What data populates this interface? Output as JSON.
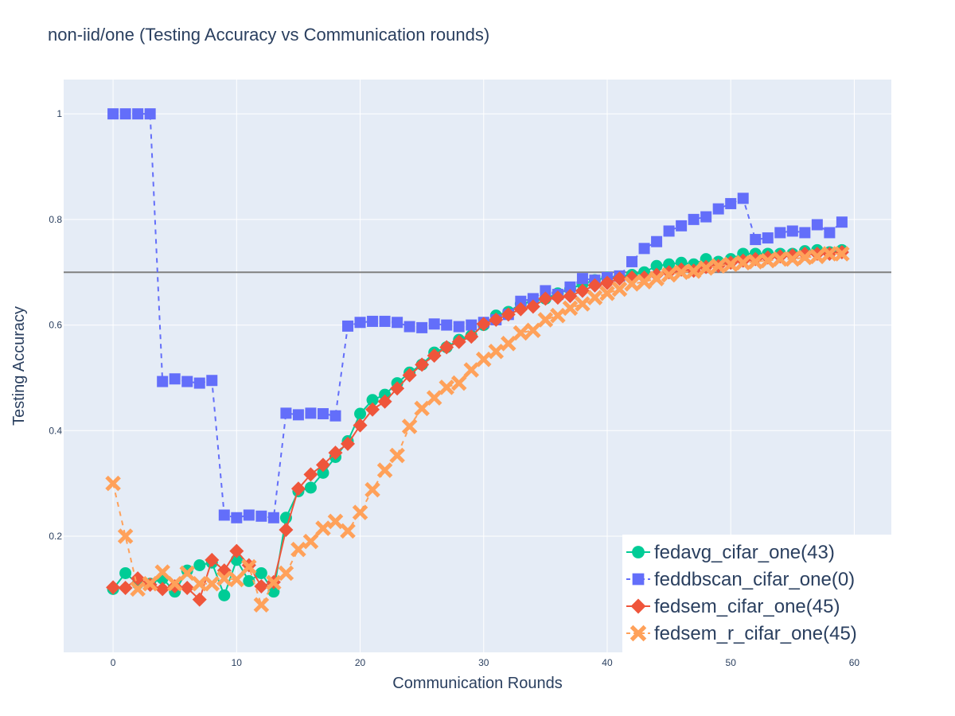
{
  "chart_data": {
    "type": "line",
    "title": "non-iid/one (Testing Accuracy vs Communication rounds)",
    "xlabel": "Communication Rounds",
    "ylabel": "Testing Accuracy",
    "xlim": [
      -4,
      63
    ],
    "ylim": [
      -0.02,
      1.065
    ],
    "x_ticks": [
      0,
      10,
      20,
      30,
      40,
      50,
      60
    ],
    "y_ticks": [
      0.2,
      0.4,
      0.6,
      0.8,
      1
    ],
    "grid": true,
    "legend_position": "bottom-right",
    "reference_line": {
      "y": 0.7,
      "color": "#808080"
    },
    "x": [
      0,
      1,
      2,
      3,
      4,
      5,
      6,
      7,
      8,
      9,
      10,
      11,
      12,
      13,
      14,
      15,
      16,
      17,
      18,
      19,
      20,
      21,
      22,
      23,
      24,
      25,
      26,
      27,
      28,
      29,
      30,
      31,
      32,
      33,
      34,
      35,
      36,
      37,
      38,
      39,
      40,
      41,
      42,
      43,
      44,
      45,
      46,
      47,
      48,
      49,
      50,
      51,
      52,
      53,
      54,
      55,
      56,
      57,
      58,
      59
    ],
    "series": [
      {
        "name": "fedavg_cifar_one(43)",
        "color": "#00cc96",
        "marker": "circle",
        "line": "solid",
        "values": [
          0.1,
          0.13,
          0.11,
          0.11,
          0.12,
          0.095,
          0.135,
          0.145,
          0.15,
          0.088,
          0.155,
          0.115,
          0.13,
          0.095,
          0.235,
          0.285,
          0.292,
          0.32,
          0.35,
          0.38,
          0.432,
          0.458,
          0.468,
          0.49,
          0.51,
          0.525,
          0.548,
          0.558,
          0.572,
          0.58,
          0.6,
          0.618,
          0.625,
          0.64,
          0.645,
          0.65,
          0.66,
          0.668,
          0.678,
          0.685,
          0.69,
          0.692,
          0.695,
          0.7,
          0.712,
          0.715,
          0.718,
          0.715,
          0.725,
          0.72,
          0.725,
          0.735,
          0.735,
          0.735,
          0.735,
          0.735,
          0.74,
          0.742,
          0.738,
          0.742
        ]
      },
      {
        "name": "feddbscan_cifar_one(0)",
        "color": "#636efa",
        "marker": "square",
        "line": "dash",
        "values": [
          1.0,
          1.0,
          1.0,
          1.0,
          0.493,
          0.498,
          0.493,
          0.49,
          0.495,
          0.24,
          0.235,
          0.24,
          0.238,
          0.235,
          0.433,
          0.43,
          0.433,
          0.432,
          0.428,
          0.598,
          0.605,
          0.607,
          0.607,
          0.605,
          0.597,
          0.595,
          0.602,
          0.6,
          0.597,
          0.6,
          0.605,
          0.61,
          0.62,
          0.645,
          0.65,
          0.665,
          0.658,
          0.672,
          0.688,
          0.685,
          0.69,
          0.693,
          0.72,
          0.745,
          0.758,
          0.778,
          0.788,
          0.8,
          0.805,
          0.82,
          0.83,
          0.84,
          0.762,
          0.765,
          0.775,
          0.778,
          0.775,
          0.79,
          0.775,
          0.795
        ]
      },
      {
        "name": "fedsem_cifar_one(45)",
        "color": "#ef553b",
        "marker": "diamond",
        "line": "solid",
        "values": [
          0.103,
          0.102,
          0.12,
          0.108,
          0.1,
          0.105,
          0.102,
          0.08,
          0.155,
          0.135,
          0.172,
          0.145,
          0.105,
          0.113,
          0.212,
          0.29,
          0.317,
          0.335,
          0.358,
          0.375,
          0.41,
          0.44,
          0.455,
          0.48,
          0.505,
          0.525,
          0.542,
          0.558,
          0.568,
          0.578,
          0.602,
          0.61,
          0.62,
          0.63,
          0.635,
          0.65,
          0.652,
          0.655,
          0.665,
          0.675,
          0.68,
          0.688,
          0.69,
          0.69,
          0.695,
          0.7,
          0.705,
          0.703,
          0.71,
          0.712,
          0.718,
          0.722,
          0.725,
          0.728,
          0.73,
          0.732,
          0.735,
          0.735,
          0.735,
          0.738
        ]
      },
      {
        "name": "fedsem_r_cifar_one(45)",
        "color": "#ffa15a",
        "marker": "x",
        "line": "dash",
        "values": [
          0.3,
          0.2,
          0.1,
          0.11,
          0.132,
          0.11,
          0.13,
          0.11,
          0.11,
          0.12,
          0.118,
          0.142,
          0.07,
          0.112,
          0.13,
          0.175,
          0.19,
          0.215,
          0.228,
          0.21,
          0.245,
          0.288,
          0.325,
          0.353,
          0.408,
          0.442,
          0.462,
          0.482,
          0.49,
          0.515,
          0.535,
          0.55,
          0.565,
          0.585,
          0.59,
          0.61,
          0.618,
          0.632,
          0.64,
          0.652,
          0.66,
          0.668,
          0.678,
          0.682,
          0.688,
          0.695,
          0.7,
          0.702,
          0.708,
          0.712,
          0.715,
          0.718,
          0.72,
          0.722,
          0.725,
          0.725,
          0.728,
          0.73,
          0.735,
          0.735
        ]
      }
    ]
  }
}
